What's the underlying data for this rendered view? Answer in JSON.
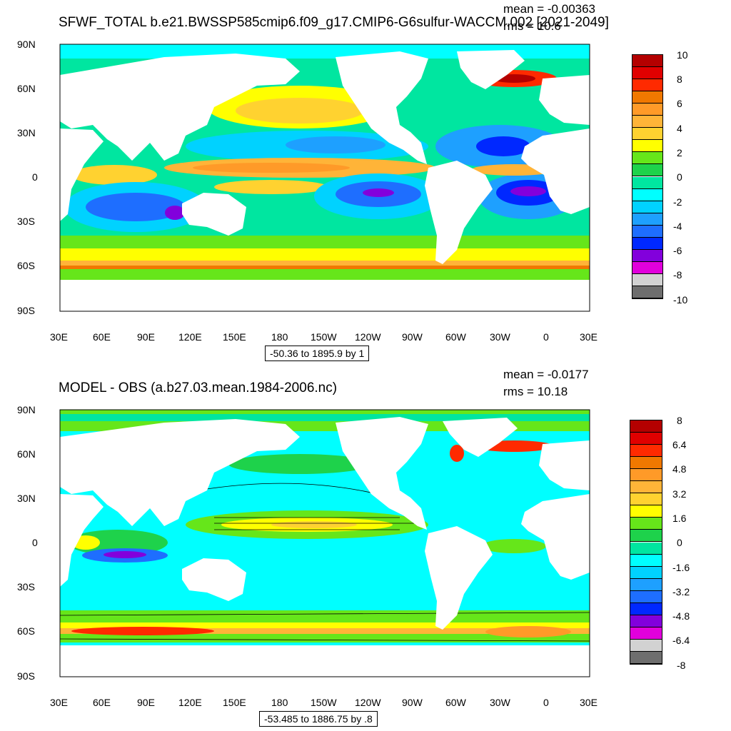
{
  "panels": [
    {
      "title": "SFWF_TOTAL b.e21.BWSSP585cmip6.f09_g17.CMIP6-G6sulfur-WACCM.002 [2021-2049]",
      "mean": "mean = -0.00363",
      "rms": "rms = 10.6",
      "info": "-50.36 to 1895.9 by 1",
      "colorbar": [
        "10",
        "8",
        "6",
        "4",
        "2",
        "0",
        "-2",
        "-4",
        "-6",
        "-8",
        "-10"
      ],
      "colors": [
        "#b40000",
        "#e00000",
        "#ff2a00",
        "#f07800",
        "#ff9a28",
        "#ffb438",
        "#ffd230",
        "#ffff00",
        "#66e61a",
        "#1ed24b",
        "#00e6a0",
        "#00ffff",
        "#00d2ff",
        "#1ea0ff",
        "#1e6eff",
        "#0028ff",
        "#8200dc",
        "#e100dc",
        "#d2d2d2",
        "#6e6e6e"
      ]
    },
    {
      "title": "MODEL - OBS (a.b27.03.mean.1984-2006.nc)",
      "mean": "mean = -0.0177",
      "rms": "rms = 10.18",
      "info": "-53.485 to 1886.75 by .8",
      "colorbar": [
        "8",
        "6.4",
        "4.8",
        "3.2",
        "1.6",
        "0",
        "-1.6",
        "-3.2",
        "-4.8",
        "-6.4",
        "-8"
      ],
      "colors": [
        "#b40000",
        "#e00000",
        "#ff2a00",
        "#f07800",
        "#ff9a28",
        "#ffb438",
        "#ffd230",
        "#ffff00",
        "#66e61a",
        "#1ed24b",
        "#00e6a0",
        "#00ffff",
        "#00d2ff",
        "#1ea0ff",
        "#1e6eff",
        "#0028ff",
        "#8200dc",
        "#e100dc",
        "#d2d2d2",
        "#6e6e6e"
      ]
    }
  ],
  "lat_labels": [
    "90N",
    "60N",
    "30N",
    "0",
    "30S",
    "60S",
    "90S"
  ],
  "lon_labels": [
    "30E",
    "60E",
    "90E",
    "120E",
    "150E",
    "180",
    "150W",
    "120W",
    "90W",
    "60W",
    "30W",
    "0",
    "30E"
  ]
}
